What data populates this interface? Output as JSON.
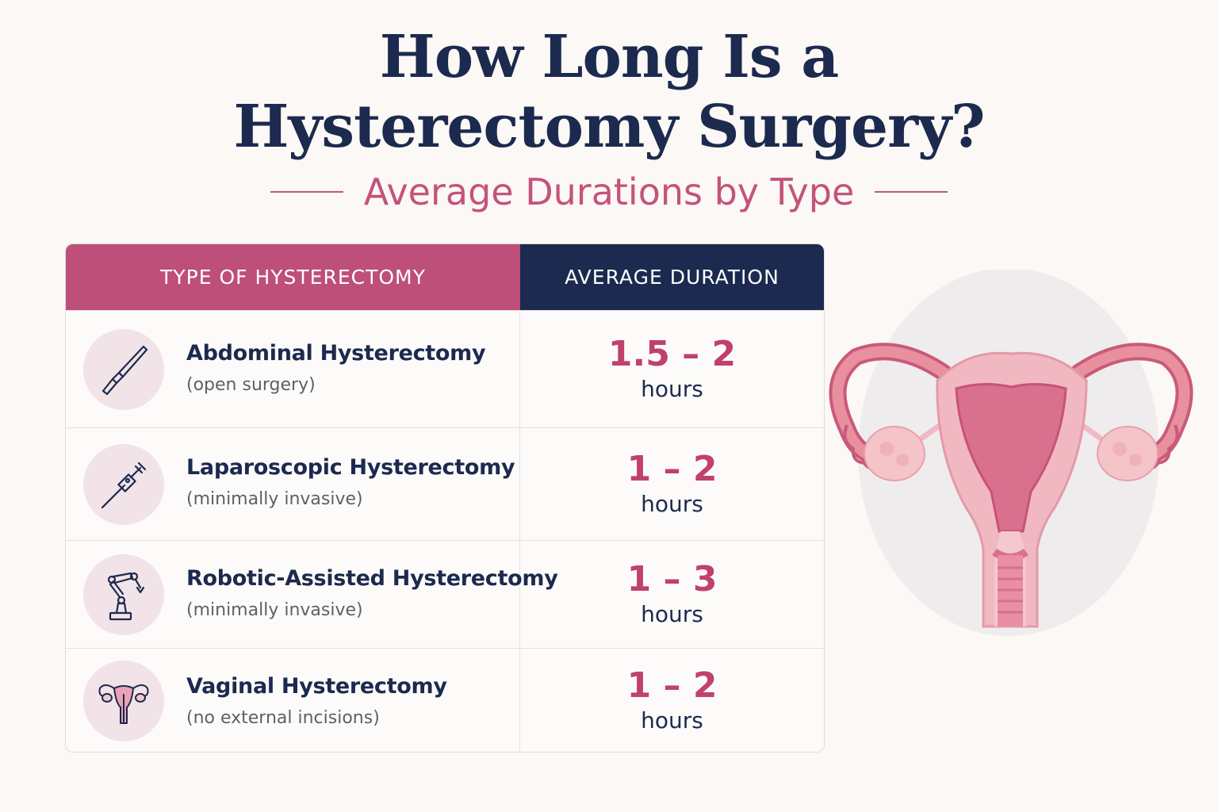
{
  "title": {
    "line1": "How Long Is a",
    "line2": "Hysterectomy Surgery?"
  },
  "subtitle": "Average Durations by Type",
  "table": {
    "headers": {
      "type": "TYPE OF HYSTERECTOMY",
      "duration": "AVERAGE DURATION"
    },
    "rows": [
      {
        "icon": "scalpel-icon",
        "name": "Abdominal Hysterectomy",
        "note": "(open surgery)",
        "range": "1.5 – 2",
        "unit": "hours"
      },
      {
        "icon": "laparoscope-icon",
        "name": "Laparoscopic Hysterectomy",
        "note": "(minimally invasive)",
        "range": "1 – 2",
        "unit": "hours"
      },
      {
        "icon": "robotic-arm-icon",
        "name": "Robotic-Assisted Hysterectomy",
        "note": "(minimally invasive)",
        "range": "1 – 3",
        "unit": "hours"
      },
      {
        "icon": "uterus-icon",
        "name": "Vaginal Hysterectomy",
        "note": "(no external incisions)",
        "range": "1 – 2",
        "unit": "hours"
      }
    ]
  },
  "colors": {
    "navy": "#1b2a4e",
    "rose": "#bd4f79",
    "range": "#c0406f",
    "background": "#fbf8f5"
  },
  "illustration": "uterus-illustration"
}
